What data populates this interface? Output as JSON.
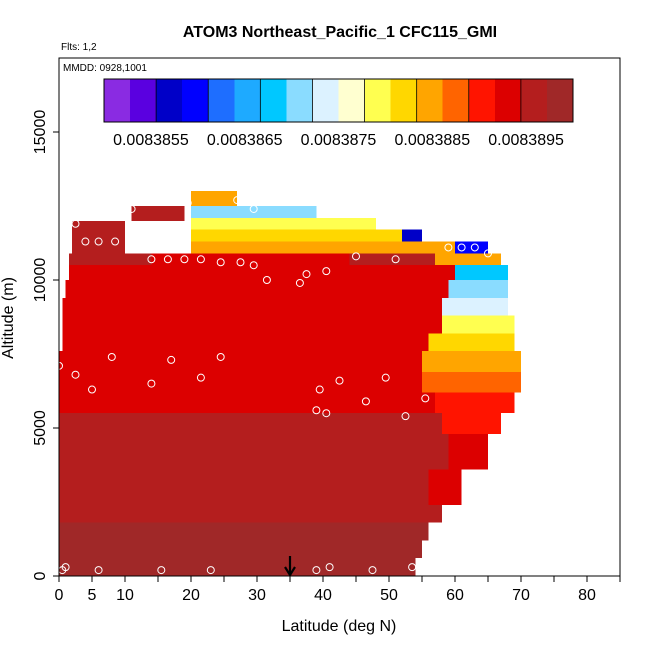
{
  "chart_data": {
    "type": "heatmap",
    "title": "ATOM3 Northeast_Pacific_1 CFC115_GMI",
    "flights_label": "Flts: 1,2",
    "date_label": "MMDD: 0928,1001",
    "xlabel": "Latitude (deg N)",
    "ylabel": "Altitude (m)",
    "xlim": [
      0,
      85
    ],
    "ylim": [
      0,
      17500
    ],
    "x_ticks": [
      0,
      5,
      10,
      20,
      30,
      40,
      50,
      60,
      70,
      80
    ],
    "x_tick_labels": [
      "0",
      "5",
      "10",
      "20",
      "30",
      "40",
      "50",
      "60",
      "70",
      "80"
    ],
    "y_ticks": [
      0,
      5000,
      10000,
      15000
    ],
    "y_tick_labels": [
      "0",
      "5000",
      "10000",
      "15000"
    ],
    "colorbar": {
      "min": 0.008385,
      "max": 0.00839,
      "tick_values": [
        0.0083855,
        0.0083865,
        0.0083875,
        0.0083885,
        0.0083895
      ],
      "tick_labels": [
        "0.0083855",
        "0.0083865",
        "0.0083875",
        "0.0083885",
        "0.0083895"
      ],
      "colors": [
        "#8a2be2",
        "#5a00e0",
        "#0000c8",
        "#0000ff",
        "#1e6eff",
        "#1eaaff",
        "#00c8ff",
        "#8adcff",
        "#dcf2ff",
        "#ffffd0",
        "#ffff50",
        "#ffd700",
        "#ffa500",
        "#ff6400",
        "#ff1400",
        "#dc0000",
        "#b41e1e",
        "#a02828"
      ]
    },
    "arrow_marker_latitude": 35,
    "curtain_rows": [
      {
        "alt": [
          0,
          300
        ],
        "lat_min": 0,
        "lat_max": 54,
        "value": 0.0083899
      },
      {
        "alt": [
          300,
          600
        ],
        "lat_min": 0,
        "lat_max": 54,
        "value": 0.0083899
      },
      {
        "alt": [
          600,
          1200
        ],
        "lat_min": 0,
        "lat_max": 55,
        "value": 0.0083898
      },
      {
        "alt": [
          1200,
          1800
        ],
        "lat_min": 0,
        "lat_max": 56,
        "value": 0.0083898
      },
      {
        "alt": [
          1800,
          2400
        ],
        "lat_min": 0,
        "lat_max": 58,
        "value": 0.0083897
      },
      {
        "alt": [
          2400,
          3000
        ],
        "lat_min": 0,
        "lat_max": 59,
        "value": 0.0083897
      },
      {
        "alt": [
          3000,
          3600
        ],
        "lat_min": 0,
        "lat_max": 61,
        "value": 0.0083896
      },
      {
        "alt": [
          3600,
          4200
        ],
        "lat_min": 0,
        "lat_max": 63,
        "value": 0.0083896
      },
      {
        "alt": [
          4200,
          4800
        ],
        "lat_min": 0,
        "lat_max": 65,
        "value": 0.0083895
      },
      {
        "alt": [
          4800,
          5500
        ],
        "lat_min": 0,
        "lat_max": 67,
        "value": 0.0083895
      },
      {
        "alt": [
          5500,
          6200
        ],
        "lat_min": 0,
        "lat_max": 69,
        "value": 0.0083894
      },
      {
        "alt": [
          6200,
          6900
        ],
        "lat_min": 0,
        "lat_max": 70,
        "value": 0.0083894
      },
      {
        "alt": [
          6900,
          7600
        ],
        "lat_min": 0,
        "lat_max": 70,
        "value": 0.0083893
      },
      {
        "alt": [
          7600,
          8200
        ],
        "lat_min": 0.5,
        "lat_max": 69,
        "value": 0.0083893
      },
      {
        "alt": [
          8200,
          8800
        ],
        "lat_min": 0.5,
        "lat_max": 69,
        "value": 0.0083893
      },
      {
        "alt": [
          8800,
          9400
        ],
        "lat_min": 0.5,
        "lat_max": 68,
        "value": 0.0083894
      },
      {
        "alt": [
          9400,
          10000
        ],
        "lat_min": 1,
        "lat_max": 68,
        "value": 0.0083894
      },
      {
        "alt": [
          10000,
          10500
        ],
        "lat_min": 1.5,
        "lat_max": 67,
        "value": 0.0083894
      },
      {
        "alt": [
          10500,
          10900
        ],
        "lat_min": 1.5,
        "lat_max": 65,
        "value": 0.0083895
      },
      {
        "alt": [
          10900,
          11400
        ],
        "lat_min": 2,
        "lat_max": 10,
        "value": 0.0083895
      },
      {
        "alt": [
          11400,
          12000
        ],
        "lat_min": 2,
        "lat_max": 10,
        "value": 0.0083895
      },
      {
        "alt": [
          12000,
          12500
        ],
        "lat_min": 11,
        "lat_max": 19,
        "value": 0.0083895
      }
    ],
    "overlays": [
      {
        "alt": [
          10900,
          11300
        ],
        "lat_min": 20,
        "lat_max": 60,
        "value": 0.0083886
      },
      {
        "alt": [
          11300,
          11700
        ],
        "lat_min": 20,
        "lat_max": 52,
        "value": 0.0083882
      },
      {
        "alt": [
          11700,
          12100
        ],
        "lat_min": 20,
        "lat_max": 48,
        "value": 0.0083878
      },
      {
        "alt": [
          12100,
          12500
        ],
        "lat_min": 20,
        "lat_max": 39,
        "value": 0.0083872
      },
      {
        "alt": [
          12500,
          13000
        ],
        "lat_min": 20,
        "lat_max": 27,
        "value": 0.0083885
      },
      {
        "alt": [
          11300,
          11700
        ],
        "lat_min": 52,
        "lat_max": 55,
        "value": 0.0083858
      },
      {
        "alt": [
          10900,
          11300
        ],
        "lat_min": 60,
        "lat_max": 65,
        "value": 0.008386
      },
      {
        "alt": [
          10500,
          10900
        ],
        "lat_min": 57,
        "lat_max": 67,
        "value": 0.0083886
      },
      {
        "alt": [
          10000,
          10500
        ],
        "lat_min": 60,
        "lat_max": 68,
        "value": 0.0083868
      },
      {
        "alt": [
          9400,
          10000
        ],
        "lat_min": 59,
        "lat_max": 68,
        "value": 0.008387
      },
      {
        "alt": [
          8800,
          9400
        ],
        "lat_min": 58,
        "lat_max": 68,
        "value": 0.0083874
      },
      {
        "alt": [
          8200,
          8800
        ],
        "lat_min": 58,
        "lat_max": 69,
        "value": 0.0083878
      },
      {
        "alt": [
          7600,
          8200
        ],
        "lat_min": 56,
        "lat_max": 69,
        "value": 0.0083882
      },
      {
        "alt": [
          6900,
          7600
        ],
        "lat_min": 55,
        "lat_max": 70,
        "value": 0.0083885
      },
      {
        "alt": [
          6200,
          6900
        ],
        "lat_min": 55,
        "lat_max": 70,
        "value": 0.0083887
      },
      {
        "alt": [
          5500,
          6200
        ],
        "lat_min": 57,
        "lat_max": 69,
        "value": 0.0083889
      },
      {
        "alt": [
          4800,
          5500
        ],
        "lat_min": 58,
        "lat_max": 67,
        "value": 0.008389
      },
      {
        "alt": [
          3600,
          4800
        ],
        "lat_min": 59,
        "lat_max": 65,
        "value": 0.0083892
      },
      {
        "alt": [
          2400,
          3600
        ],
        "lat_min": 56,
        "lat_max": 61,
        "value": 0.0083893
      },
      {
        "alt": [
          10500,
          10900
        ],
        "lat_min": 14,
        "lat_max": 44,
        "value": 0.0083893
      },
      {
        "alt": [
          8200,
          10500
        ],
        "lat_min": 24,
        "lat_max": 34,
        "value": 0.0083893
      },
      {
        "alt": [
          6900,
          8200
        ],
        "lat_min": 30,
        "lat_max": 52,
        "value": 0.0083893
      }
    ],
    "observations": [
      {
        "lat": 0.5,
        "alt": 200
      },
      {
        "lat": 1,
        "alt": 300
      },
      {
        "lat": 6,
        "alt": 200
      },
      {
        "lat": 15.5,
        "alt": 200
      },
      {
        "lat": 23,
        "alt": 200
      },
      {
        "lat": 39,
        "alt": 200
      },
      {
        "lat": 41,
        "alt": 300
      },
      {
        "lat": 47.5,
        "alt": 200
      },
      {
        "lat": 53.5,
        "alt": 300
      },
      {
        "lat": 0,
        "alt": 7100
      },
      {
        "lat": 2.5,
        "alt": 6800
      },
      {
        "lat": 5,
        "alt": 6300
      },
      {
        "lat": 8,
        "alt": 7400
      },
      {
        "lat": 14,
        "alt": 6500
      },
      {
        "lat": 17,
        "alt": 7300
      },
      {
        "lat": 21.5,
        "alt": 6700
      },
      {
        "lat": 24.5,
        "alt": 7400
      },
      {
        "lat": 39,
        "alt": 5600
      },
      {
        "lat": 39.5,
        "alt": 6300
      },
      {
        "lat": 40.5,
        "alt": 5500
      },
      {
        "lat": 42.5,
        "alt": 6600
      },
      {
        "lat": 46.5,
        "alt": 5900
      },
      {
        "lat": 49.5,
        "alt": 6700
      },
      {
        "lat": 52.5,
        "alt": 5400
      },
      {
        "lat": 55.5,
        "alt": 6000
      },
      {
        "lat": 70.5,
        "alt": 6100
      },
      {
        "lat": 2.5,
        "alt": 11900
      },
      {
        "lat": 4,
        "alt": 11300
      },
      {
        "lat": 6,
        "alt": 11300
      },
      {
        "lat": 8.5,
        "alt": 11300
      },
      {
        "lat": 11,
        "alt": 11200
      },
      {
        "lat": 11,
        "alt": 12400
      },
      {
        "lat": 14,
        "alt": 10700
      },
      {
        "lat": 16.5,
        "alt": 10700
      },
      {
        "lat": 19,
        "alt": 10700
      },
      {
        "lat": 19.5,
        "alt": 12600
      },
      {
        "lat": 21.5,
        "alt": 10700
      },
      {
        "lat": 24.5,
        "alt": 10600
      },
      {
        "lat": 27,
        "alt": 12700
      },
      {
        "lat": 27.5,
        "alt": 10600
      },
      {
        "lat": 29.5,
        "alt": 10500
      },
      {
        "lat": 29.5,
        "alt": 12400
      },
      {
        "lat": 31.5,
        "alt": 10000
      },
      {
        "lat": 36.5,
        "alt": 9900
      },
      {
        "lat": 37.5,
        "alt": 10200
      },
      {
        "lat": 40.5,
        "alt": 10300
      },
      {
        "lat": 45,
        "alt": 10800
      },
      {
        "lat": 51,
        "alt": 10700
      },
      {
        "lat": 59,
        "alt": 11100
      },
      {
        "lat": 61,
        "alt": 11100
      },
      {
        "lat": 63,
        "alt": 11100
      },
      {
        "lat": 65,
        "alt": 10900
      },
      {
        "lat": 68.5,
        "alt": 10900
      }
    ]
  }
}
